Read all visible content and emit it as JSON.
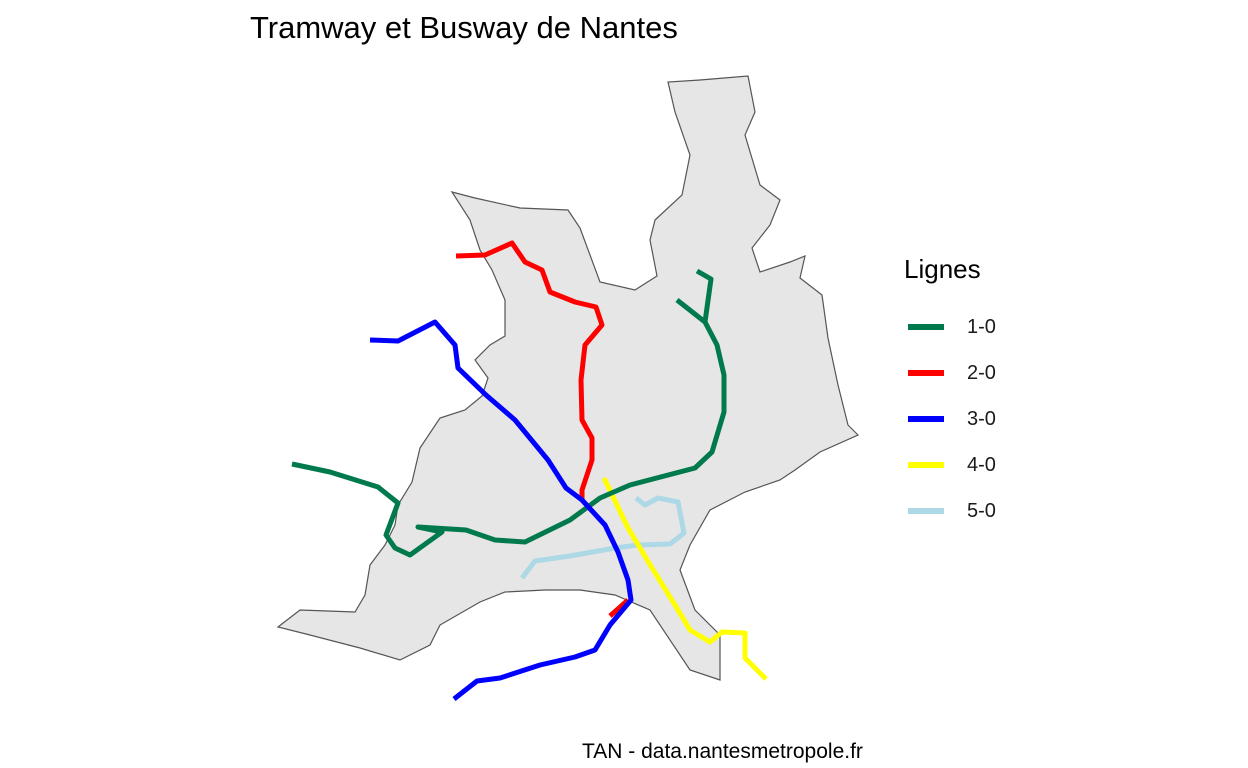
{
  "map": {
    "title": "Tramway et Busway de Nantes",
    "caption": "TAN - data.nantesmetropole.fr",
    "area_fill": "#e6e6e6",
    "area_stroke": "#555555"
  },
  "legend": {
    "title": "Lignes",
    "items": [
      {
        "label": "1-0",
        "color": "#007a4d"
      },
      {
        "label": "2-0",
        "color": "#ff0000"
      },
      {
        "label": "3-0",
        "color": "#0000ff"
      },
      {
        "label": "4-0",
        "color": "#ffff00"
      },
      {
        "label": "5-0",
        "color": "#add8e6"
      }
    ]
  }
}
